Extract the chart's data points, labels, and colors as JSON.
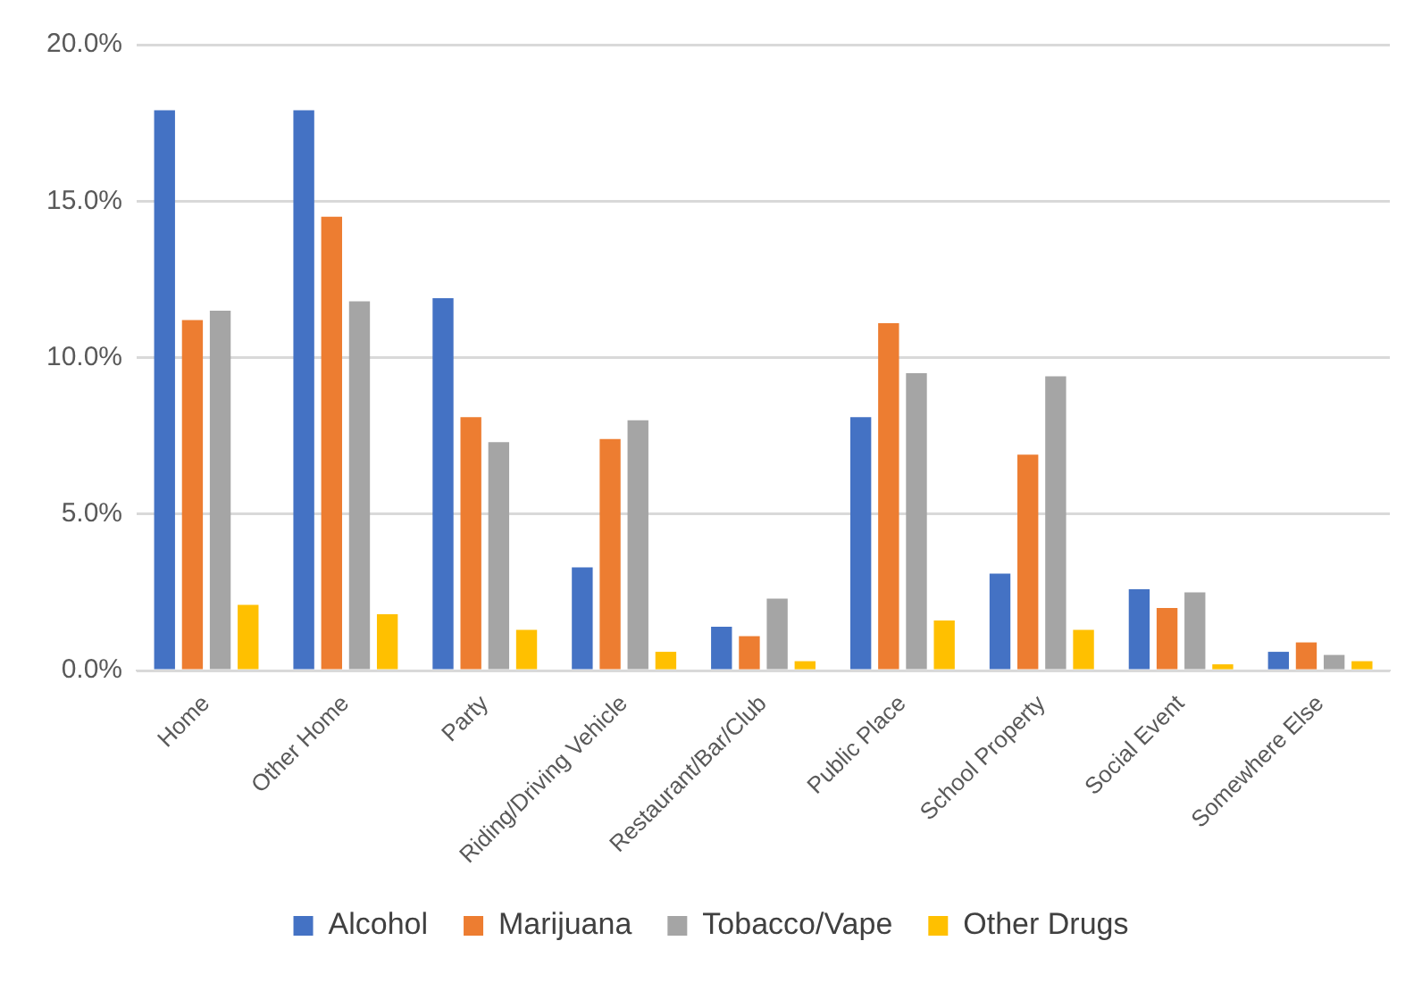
{
  "chart_data": {
    "type": "bar",
    "categories": [
      "Home",
      "Other Home",
      "Party",
      "Riding/Driving Vehicle",
      "Restaurant/Bar/Club",
      "Public Place",
      "School Property",
      "Social Event",
      "Somewhere Else"
    ],
    "series": [
      {
        "name": "Alcohol",
        "color": "#4472c4",
        "values": [
          17.9,
          17.9,
          11.9,
          3.3,
          1.4,
          8.1,
          3.1,
          2.6,
          0.6
        ]
      },
      {
        "name": "Marijuana",
        "color": "#ed7d31",
        "values": [
          11.2,
          14.5,
          8.1,
          7.4,
          1.1,
          11.1,
          6.9,
          2.0,
          0.9
        ]
      },
      {
        "name": "Tobacco/Vape",
        "color": "#a5a5a5",
        "values": [
          11.5,
          11.8,
          7.3,
          8.0,
          2.3,
          9.5,
          9.4,
          2.5,
          0.5
        ]
      },
      {
        "name": "Other Drugs",
        "color": "#ffc000",
        "values": [
          2.1,
          1.8,
          1.3,
          0.6,
          0.3,
          1.6,
          1.3,
          0.2,
          0.3
        ]
      }
    ],
    "ylim": [
      0,
      20
    ],
    "yticks": [
      {
        "value": 0,
        "label": "0.0%"
      },
      {
        "value": 5,
        "label": "5.0%"
      },
      {
        "value": 10,
        "label": "10.0%"
      },
      {
        "value": 15,
        "label": "15.0%"
      },
      {
        "value": 20,
        "label": "20.0%"
      }
    ],
    "grid": "y",
    "legend": "bottom"
  }
}
